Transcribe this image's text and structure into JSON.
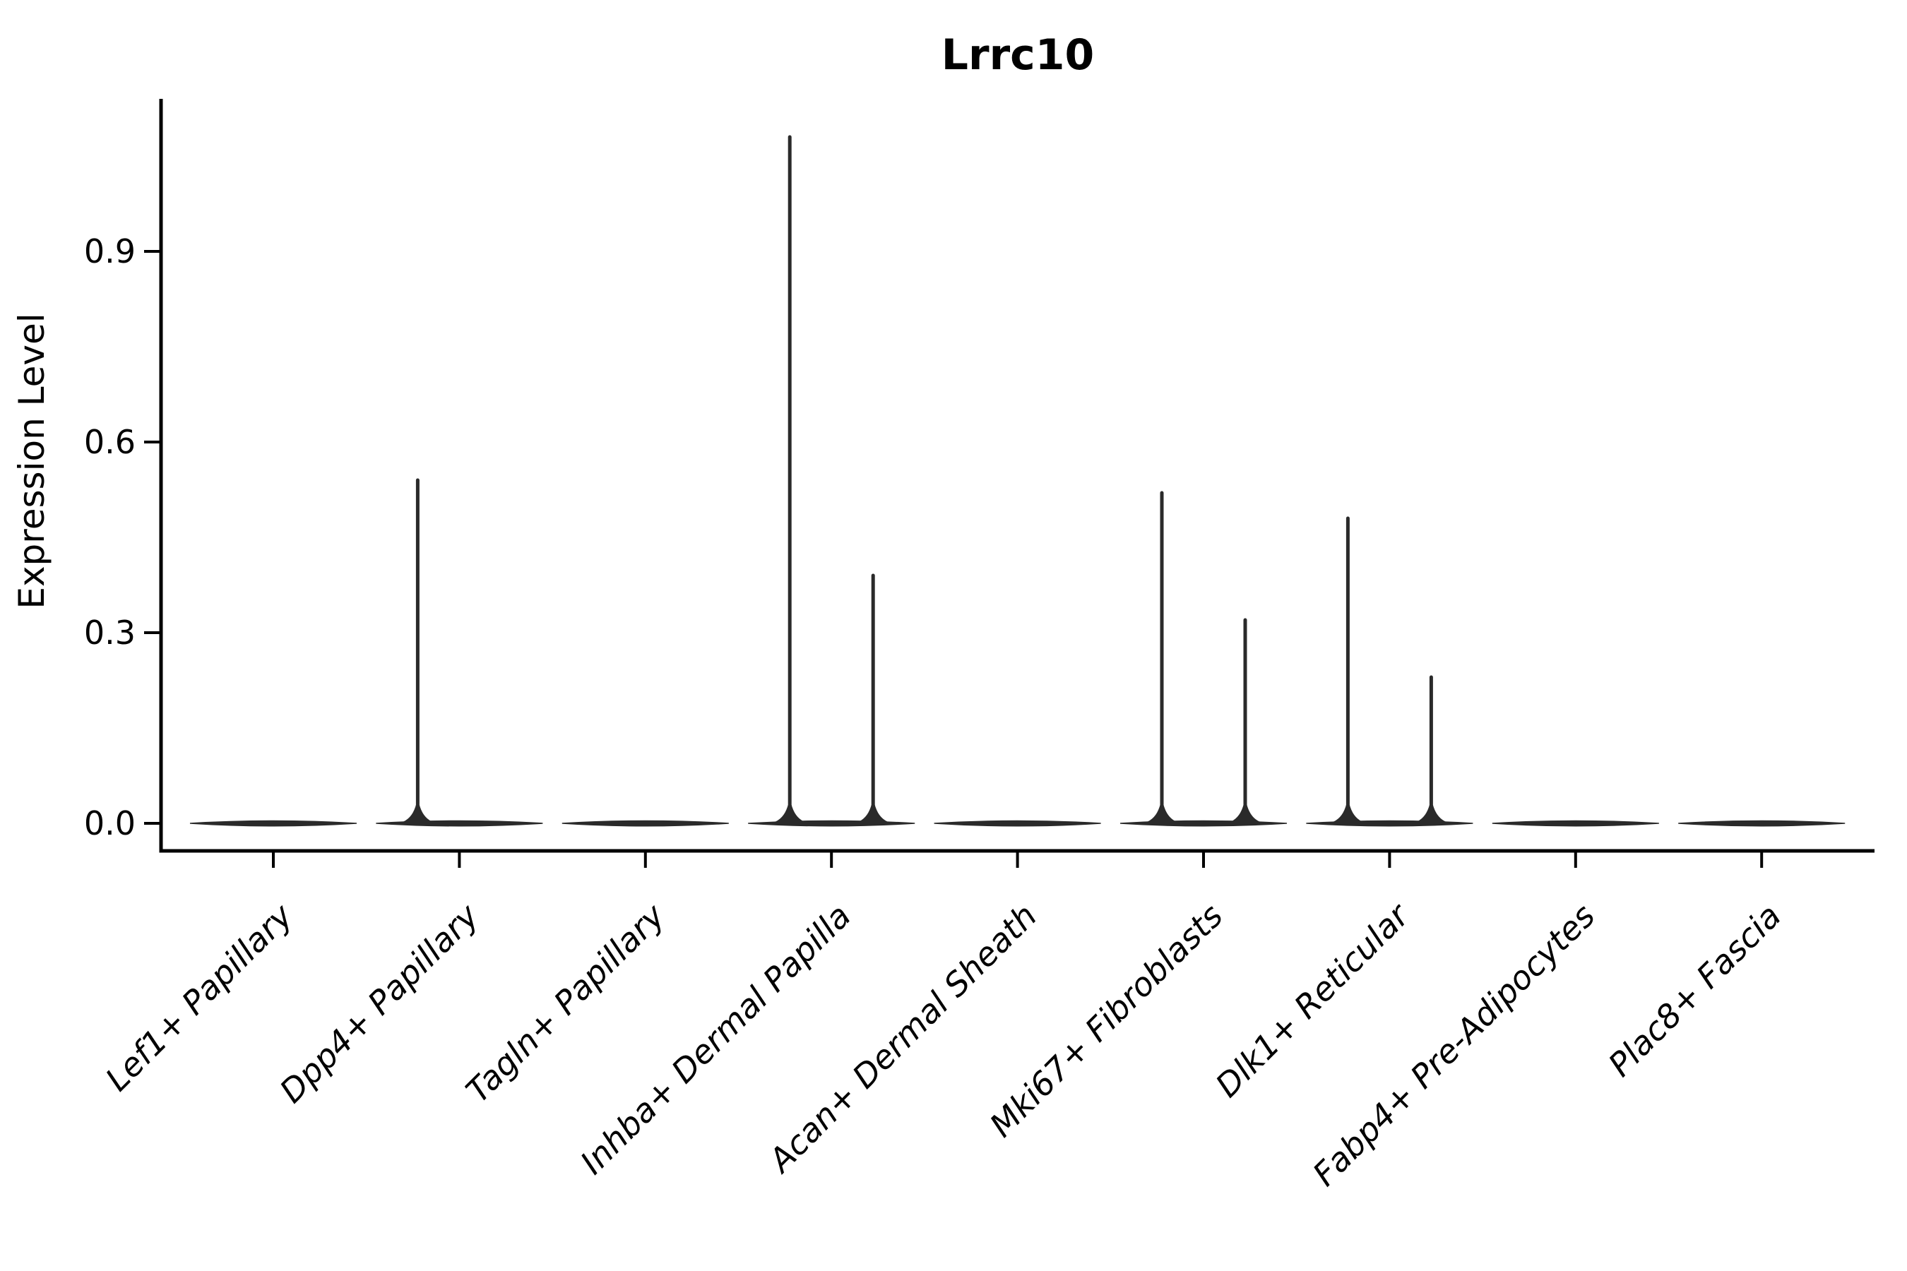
{
  "figure": {
    "title": "Lrrc10",
    "ylabel": "Expression Level"
  },
  "chart_data": {
    "type": "violin",
    "title": "Lrrc10",
    "xlabel": "",
    "ylabel": "Expression Level",
    "ytick_labels": [
      "0.0",
      "0.3",
      "0.6",
      "0.9"
    ],
    "ytick_values": [
      0.0,
      0.3,
      0.6,
      0.9
    ],
    "ylim": [
      -0.045,
      1.14
    ],
    "grid": false,
    "legend": "none",
    "violins_per_category": 2,
    "categories": [
      "Lef1+ Papillary",
      "Dpp4+ Papillary",
      "Tagln+ Papillary",
      "Inhba+ Dermal Papilla",
      "Acan+ Dermal Sheath",
      "Mki67+ Fibroblasts",
      "Dlk1+ Reticular",
      "Fabp4+ Pre-Adipocytes",
      "Plac8+ Fascia"
    ],
    "series": [
      {
        "category": "Lef1+ Papillary",
        "baseline_value": 0.0,
        "spike_max": [
          0.0,
          0.0
        ]
      },
      {
        "category": "Dpp4+ Papillary",
        "baseline_value": 0.0,
        "spike_max": [
          0.54,
          0.0
        ]
      },
      {
        "category": "Tagln+ Papillary",
        "baseline_value": 0.0,
        "spike_max": [
          0.0,
          0.0
        ]
      },
      {
        "category": "Inhba+ Dermal Papilla",
        "baseline_value": 0.0,
        "spike_max": [
          1.08,
          0.39
        ]
      },
      {
        "category": "Acan+ Dermal Sheath",
        "baseline_value": 0.0,
        "spike_max": [
          0.0,
          0.0
        ]
      },
      {
        "category": "Mki67+ Fibroblasts",
        "baseline_value": 0.0,
        "spike_max": [
          0.52,
          0.32
        ]
      },
      {
        "category": "Dlk1+ Reticular",
        "baseline_value": 0.0,
        "spike_max": [
          0.48,
          0.23
        ]
      },
      {
        "category": "Fabp4+ Pre-Adipocytes",
        "baseline_value": 0.0,
        "spike_max": [
          0.0,
          0.0
        ]
      },
      {
        "category": "Plac8+ Fascia",
        "baseline_value": 0.0,
        "spike_max": [
          0.0,
          0.0
        ]
      }
    ],
    "colors": {
      "violin_stroke": "#2a2a2a",
      "axis": "#000000",
      "text": "#000000",
      "background": "#ffffff"
    },
    "x_tick_label_style": "italic, rotated 45deg, anchored at tick"
  }
}
